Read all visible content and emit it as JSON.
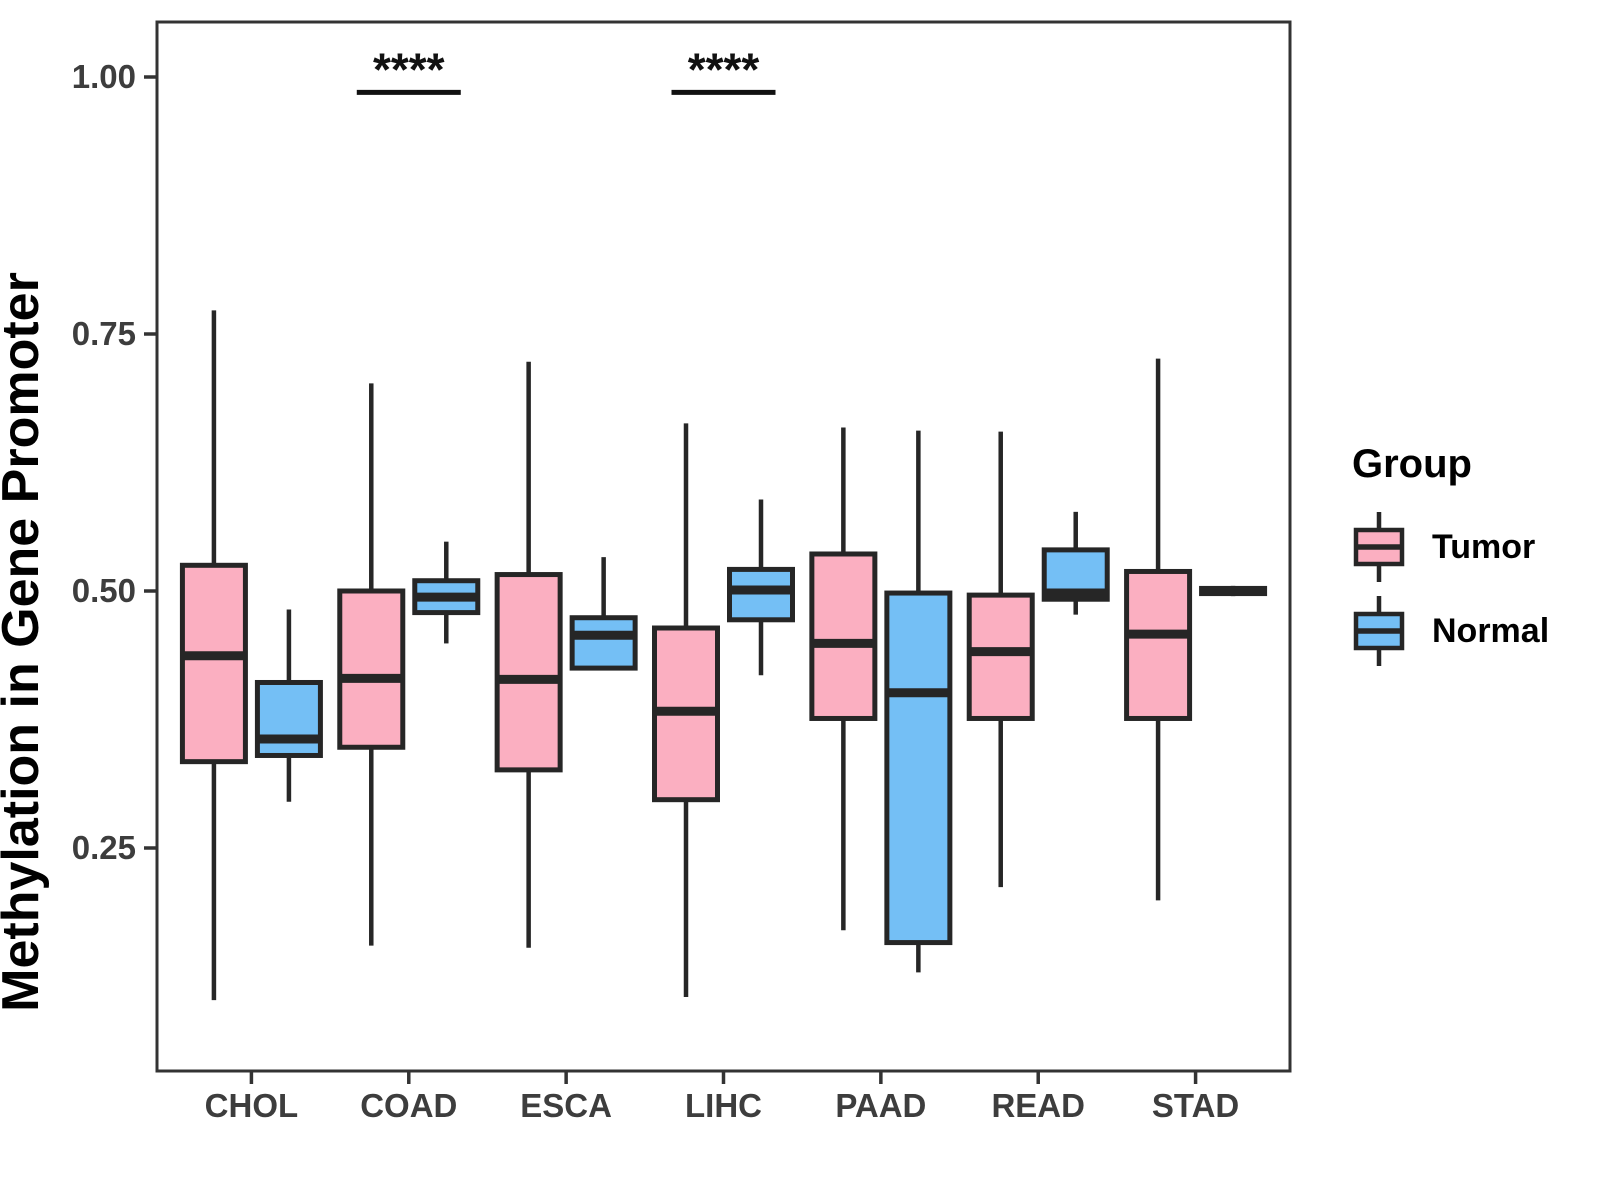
{
  "chart_data": {
    "type": "boxplot",
    "title": "",
    "xlabel": "",
    "ylabel": "Methylation in Gene Promoter",
    "categories": [
      "CHOL",
      "COAD",
      "ESCA",
      "LIHC",
      "PAAD",
      "READ",
      "STAD"
    ],
    "ylim": [
      0.03,
      1.05
    ],
    "yticks": [
      0.25,
      0.5,
      0.75,
      1.0
    ],
    "ytick_labels": [
      "0.25",
      "0.50",
      "0.75",
      "1.00"
    ],
    "grid": false,
    "legend_position": "right",
    "series": [
      {
        "name": "Tumor",
        "color": "#FBAFC1",
        "stats": [
          {
            "category": "CHOL",
            "min": 0.102,
            "q1": 0.334,
            "median": 0.437,
            "q3": 0.525,
            "max": 0.773
          },
          {
            "category": "COAD",
            "min": 0.155,
            "q1": 0.348,
            "median": 0.415,
            "q3": 0.5,
            "max": 0.702
          },
          {
            "category": "ESCA",
            "min": 0.153,
            "q1": 0.326,
            "median": 0.414,
            "q3": 0.516,
            "max": 0.723
          },
          {
            "category": "LIHC",
            "min": 0.105,
            "q1": 0.297,
            "median": 0.383,
            "q3": 0.464,
            "max": 0.663
          },
          {
            "category": "PAAD",
            "min": 0.17,
            "q1": 0.376,
            "median": 0.449,
            "q3": 0.536,
            "max": 0.659
          },
          {
            "category": "READ",
            "min": 0.212,
            "q1": 0.376,
            "median": 0.441,
            "q3": 0.496,
            "max": 0.655
          },
          {
            "category": "STAD",
            "min": 0.199,
            "q1": 0.376,
            "median": 0.458,
            "q3": 0.519,
            "max": 0.726
          }
        ]
      },
      {
        "name": "Normal",
        "color": "#74BFF5",
        "stats": [
          {
            "category": "CHOL",
            "min": 0.295,
            "q1": 0.34,
            "median": 0.356,
            "q3": 0.411,
            "max": 0.482
          },
          {
            "category": "COAD",
            "min": 0.449,
            "q1": 0.479,
            "median": 0.494,
            "q3": 0.51,
            "max": 0.548
          },
          {
            "category": "ESCA",
            "min": 0.424,
            "q1": 0.425,
            "median": 0.457,
            "q3": 0.474,
            "max": 0.533
          },
          {
            "category": "LIHC",
            "min": 0.418,
            "q1": 0.472,
            "median": 0.501,
            "q3": 0.521,
            "max": 0.589
          },
          {
            "category": "PAAD",
            "min": 0.129,
            "q1": 0.158,
            "median": 0.401,
            "q3": 0.498,
            "max": 0.656
          },
          {
            "category": "READ",
            "min": 0.477,
            "q1": 0.492,
            "median": 0.498,
            "q3": 0.54,
            "max": 0.577
          },
          {
            "category": "STAD",
            "min": 0.495,
            "q1": 0.4975,
            "median": 0.5,
            "q3": 0.5025,
            "max": 0.505
          }
        ]
      }
    ],
    "annotations": [
      {
        "category": "COAD",
        "label": "****",
        "y": 0.985
      },
      {
        "category": "LIHC",
        "label": "****",
        "y": 0.985
      }
    ]
  },
  "legend": {
    "title": "Group",
    "items": [
      {
        "label": "Tumor",
        "color": "#FBAFC1"
      },
      {
        "label": "Normal",
        "color": "#74BFF5"
      }
    ]
  },
  "styles": {
    "panel_border": "#333333",
    "box_stroke": "#262626",
    "median_stroke": "#262626",
    "axis_text": "#3d3d3d",
    "title_text": "#000000",
    "annotation_color": "#111111"
  }
}
